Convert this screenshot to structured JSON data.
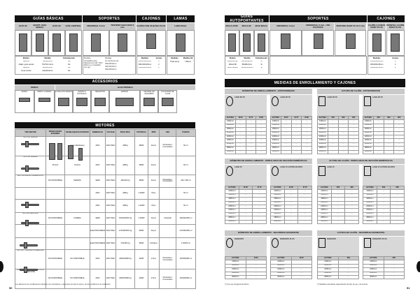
{
  "left": {
    "top_sections": [
      {
        "title": "GUÍAS BÁSICAS",
        "cols": [
          "GUÍA 60",
          "ADAPT. GUÍA SENCIA",
          "GUÍA 90",
          "GUÍA CENTRAL"
        ]
      },
      {
        "title": "SOPORTES",
        "cols": [
          "UNIVERSAL 6 mm",
          "TESTERO SAN CRUZ 6 mm"
        ]
      },
      {
        "title": "CAJONES",
        "cols": [
          "CAJÓN CON 45 BÁSIC PLUS"
        ]
      },
      {
        "title": "LAMAS",
        "cols": [
          "LAMA REJA"
        ]
      }
    ],
    "guias_info": {
      "headers": [
        "Modelo",
        "Medida",
        "Embellecedor"
      ],
      "rows": [
        [
          "Guía 60",
          "60x40x3mm",
          "No"
        ],
        [
          "Adapt. guía sencia",
          "70x70x1,4mm",
          "No"
        ],
        [
          "Guía 90",
          "90x40x3mm",
          "No"
        ],
        [
          "Guía central",
          "110x40x3mm",
          "No"
        ]
      ]
    },
    "soportes_info": [
      "Medidas",
      "Compatible para diámetros de 240 / 300 / 360mm (y compatible con eje)",
      "Medidas",
      "de cuerda por eje",
      "250x250x6mm",
      "300x300x6mm",
      "350x350x6mm"
    ],
    "cajones_info": {
      "headers": [
        "Medidas",
        "Gomas"
      ],
      "rows": [
        [
          "250x250x45mm",
          "2"
        ],
        [
          "300x300x45mm",
          "2"
        ],
        [
          "350x350x45mm",
          "2"
        ]
      ]
    },
    "lamas_info": {
      "headers": [
        "Medidas",
        "Medida útil"
      ],
      "rows": [
        [
          "Triple lama",
          "7,85mm"
        ]
      ]
    },
    "accesorios": {
      "title": "ACCESORIOS",
      "groups": [
        "PERFIL",
        "ELECTRÓNICA"
      ],
      "items": [
        "PERFIL",
        "PERFIL LATERAL",
        "LLAVE CON MANDO",
        "MANDO A DISTANCIA",
        "RECEPTOR",
        "EMISOR",
        "CENTRAL DE MANIOBRA",
        "PULSADOR DE LLAVE"
      ]
    },
    "motores": {
      "title": "MOTORES",
      "headers": [
        "TIPO MOTOR",
        "DESBLOQUEO INTERIOR",
        "DESBLOQUEO EXTERIOR",
        "EMBRAGUE",
        "VOLTAJE",
        "PESO MÁX.",
        "POTENCIA",
        "RPM",
        "USO",
        "PUERTA"
      ],
      "rows": [
        [
          "MOTOR SIRENA",
          "",
          "Llave desbloqueo",
          "230V",
          "230V 50Hz",
          "180Kg",
          "380W",
          "11rpm",
          "Doméstico / Comunitario",
          "60 m²"
        ],
        [
          "MOTOR SIRENA",
          "PLACA",
          "PLACA",
          "230V",
          "230V 50Hz",
          "180Kg",
          "380W",
          "11rpm",
          "",
          "60 m²"
        ],
        [
          "MOTOR RÁPIDO ASIMÉTRICO",
          "NO DISPONIBLE",
          "MANETA",
          "SEMI",
          "230V 50Hz",
          "160/220 Kg",
          "380W",
          "11rpm",
          "Doméstico / Comunitario",
          "190 / 250 m²"
        ],
        [
          "",
          "",
          "",
          "200V",
          "230V 50Hz",
          "180Kg",
          "1.400W",
          "8rpm",
          "",
          "60 m²"
        ],
        [
          "",
          "",
          "",
          "200V",
          "230V 50Hz",
          "180Kg",
          "1.400W",
          "8rpm",
          "",
          "60 m²"
        ],
        [
          "MOTOR CENTRAL",
          "NO DISPONIBLE",
          "CADENA",
          "SEMI",
          "230V 50Hz",
          "160/220/250 Kg",
          "1.400W",
          "11rpm",
          "Industrial",
          "160/220/250 m²"
        ],
        [
          "",
          "",
          "",
          "ELECTROFRENO",
          "230V 50Hz",
          "170/250/350 Kg",
          "950W",
          "11rpm",
          "",
          "170/250/350 m²"
        ],
        [
          "",
          "",
          "",
          "ELECTROFRENO",
          "400V 50Hz",
          "170/250 Kg",
          "950W",
          "13/14rpm",
          "",
          "170/250 m²"
        ],
        [
          "MOTOR TUBULAR COMERCIAL",
          "NO DISPONIBLE",
          "NO DISPONIBLE",
          "230V",
          "230V 50Hz",
          "40/50/60/80 Kg",
          "300W",
          "17rpm",
          "Doméstico / Comunitario",
          "40/50/60/80 m²"
        ],
        [
          "MOTOR TUBULAR AUMENTO Ø VARIANTE",
          "NO DISPONIBLE",
          "NO DISPONIBLE",
          "230V",
          "230V 50Hz",
          "40/50/60/80 Kg",
          "300W",
          "17rpm",
          "Doméstico / Comunitario",
          "40/50/60/80 m²"
        ]
      ]
    },
    "footnote": "Los diámetros de enrollamiento indicados son orientativos y dependen del tipo de lama y de las condiciones de instalación.",
    "page_number": "50"
  },
  "right": {
    "top_sections": [
      {
        "title": "GUÍAS AUTOPORTANTES",
        "cols": [
          "MAGA 20/30",
          "MAGA 80",
          "MAXI MAGA"
        ]
      },
      {
        "title": "SOPORTES",
        "cols": [
          "UNIVERSAL 6 mm",
          "UNIVERSAL 6 mm + PIE PLETINAS",
          "TESTERO DOBT PLUS 6 mm"
        ]
      },
      {
        "title": "CAJONES",
        "cols": [
          "CAJÓN 4 CARAS DOBT PLUS",
          "FRONTAL CAJÓN DOBT PLUS"
        ]
      }
    ],
    "guias_info": {
      "headers": [
        "Modelo",
        "Medida",
        "Embellecedor"
      ],
      "rows": [
        [
          "MAGA 20/30",
          "80x110x3mm",
          "Sí"
        ],
        [
          "MAGA 80",
          "80x80x3mm",
          "Sí"
        ],
        [
          "MAXI MAGA",
          "130x100x3mm",
          "Sí"
        ]
      ]
    },
    "cajones_info": {
      "headers": [
        "Medidas",
        "Gomas"
      ],
      "rows": [
        [
          "250x250x45mm",
          "4"
        ],
        [
          "300x300x45mm",
          "4"
        ],
        [
          "350x350x45mm",
          "4"
        ]
      ]
    },
    "medidas": {
      "title": "MEDIDAS DE ENROLLAMIENTO Y CAJONES",
      "sections": [
        {
          "title": "DIÁMETRO DE ENROLLAMIENTO - EXTRUSIONADO",
          "panels": [
            {
              "label": "LAMA EP-55",
              "headers": [
                "ALTURA",
                "Ø 60",
                "Ø 70",
                "Ø 80"
              ]
            },
            {
              "label": "LAMA EP-55",
              "headers": [
                "ALTURA",
                "Ø 60",
                "Ø 70",
                "Ø 80"
              ]
            }
          ]
        },
        {
          "title": "ALTURA DE CAJÓN - EXTRUSIONADO",
          "panels": [
            {
              "label": "LAMA EP-55",
              "headers": [
                "ALTURA",
                "250",
                "300",
                "350"
              ]
            },
            {
              "label": "LAMA EP-55",
              "headers": [
                "ALTURA",
                "250",
                "300",
                "350"
              ]
            }
          ]
        },
        {
          "title": "DIÁMETRO DE ENROLLAMIENTO - PERFILADAS DE SECCIÓN DOMÉSTICAS",
          "panels": [
            {
              "label": "LAMA 45",
              "headers": [
                "ALTURA",
                "Ø 60",
                "Ø 70"
              ]
            },
            {
              "label": "LAMA 45 AUTOBLOCANTE",
              "headers": [
                "ALTURA",
                "Ø 60",
                "Ø 70"
              ]
            }
          ]
        },
        {
          "title": "ALTURA DE CAJÓN - PERFILADAS DE SECCIÓN DOMÉSTICAS",
          "panels": [
            {
              "label": "LAMA 45",
              "headers": [
                "ALTURA",
                "250",
                "300"
              ]
            },
            {
              "label": "LAMA 45 AUTOBLOCANTE",
              "headers": [
                "ALTURA",
                "250",
                "300"
              ]
            }
          ]
        },
        {
          "title": "DIÁMETRO DE ENROLLAMIENTO - SEGURIDAD (DIAMANTE)",
          "panels": [
            {
              "label": "DIAMANTE",
              "headers": [
                "ALTURA",
                "Ø 80"
              ]
            },
            {
              "label": "DIAMANTE PLUS",
              "headers": [
                "ALTURA",
                "Ø 80"
              ]
            }
          ]
        },
        {
          "title": "ALTURA DE CAJÓN - SEGURIDAD (DIAMANTE)",
          "panels": [
            {
              "label": "DIAMANTE",
              "headers": [
                "ALTURA",
                "300"
              ]
            },
            {
              "label": "DIAMANTE PLUS",
              "headers": [
                "ALTURA",
                "300"
              ]
            }
          ]
        }
      ],
      "heights_9": [
        "1400mm",
        "1600mm",
        "1800mm",
        "2000mm",
        "2200mm",
        "2400mm",
        "2600mm",
        "2800mm",
        "3000mm"
      ],
      "heights_5": [
        "1400mm",
        "1800mm",
        "2200mm",
        "2600mm",
        "3000mm"
      ]
    },
    "footnote_left": "(*) Con eje octogonal de 60mm.",
    "footnote_right": "(*) Medidas orientativas dependiendo del tipo de eje y de la lama.",
    "page_number": "51"
  }
}
